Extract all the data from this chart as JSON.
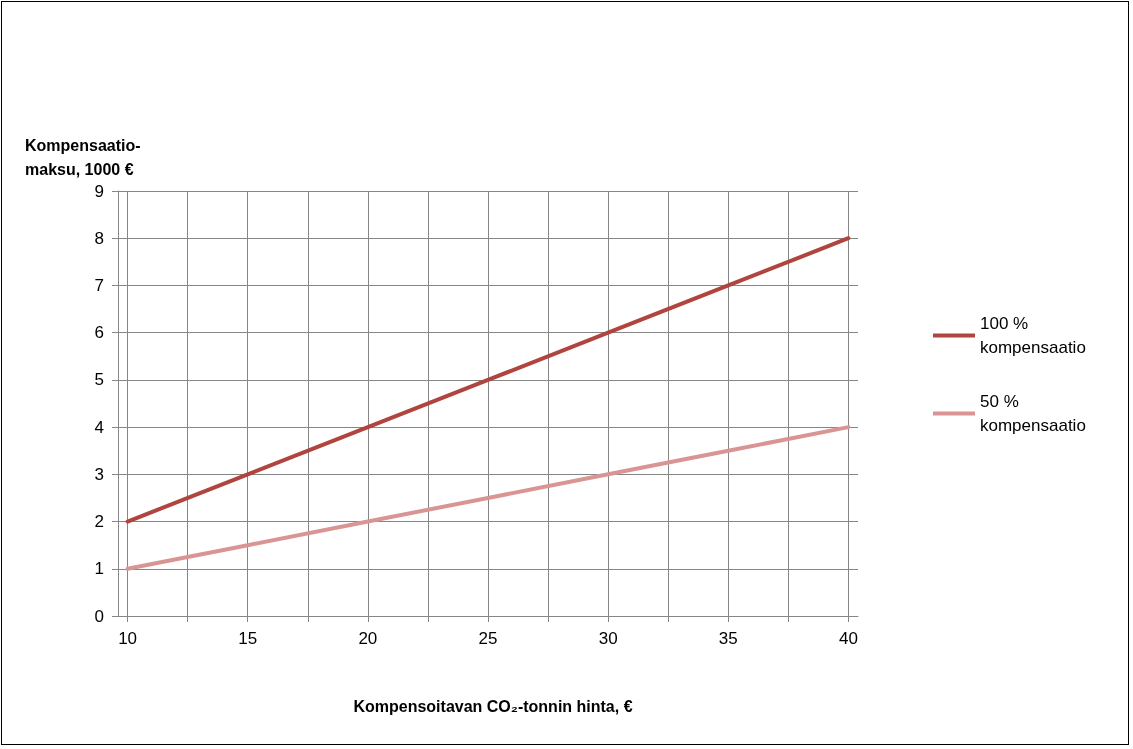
{
  "chart_data": {
    "type": "line",
    "xlabel": "Kompensoitavan CO₂-tonnin hinta, €",
    "ylabel": "Kompensaatio-\nmaksu, 1000 €",
    "x": [
      10,
      15,
      20,
      25,
      30,
      35,
      40
    ],
    "series": [
      {
        "name": "100 % kompensaatio",
        "color": "#b0443f",
        "values": [
          2,
          3,
          4,
          5,
          6,
          7,
          8
        ]
      },
      {
        "name": "50 % kompensaatio",
        "color": "#d99594",
        "values": [
          1,
          1.5,
          2,
          2.5,
          3,
          3.5,
          4
        ]
      }
    ],
    "xlim": [
      9.6,
      40.4
    ],
    "xticks": [
      10,
      {
        "value": 12.5,
        "label": null
      },
      15,
      {
        "value": 17.5,
        "label": null
      },
      20,
      {
        "value": 22.5,
        "label": null
      },
      25,
      {
        "value": 27.5,
        "label": null
      },
      30,
      {
        "value": 32.5,
        "label": null
      },
      35,
      {
        "value": 37.5,
        "label": null
      },
      40
    ],
    "ylim": [
      0,
      9
    ],
    "yticks": [
      0,
      1,
      2,
      3,
      4,
      5,
      6,
      7,
      8,
      9
    ],
    "grid": true,
    "legend": "right",
    "marker": "none",
    "line_style": "solid"
  }
}
